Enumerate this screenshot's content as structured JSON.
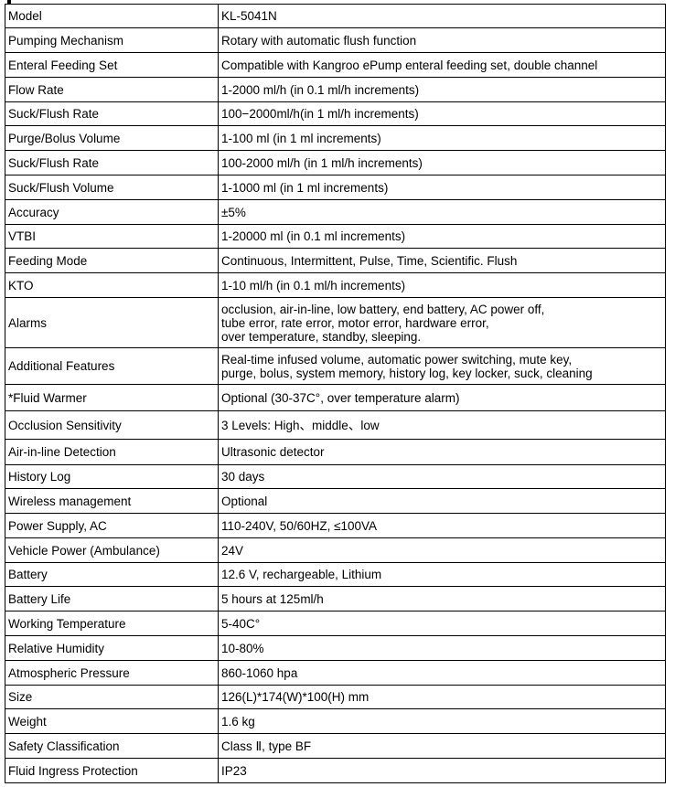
{
  "rows": [
    {
      "label": "Model",
      "value": "KL-5041N"
    },
    {
      "label": "Pumping Mechanism",
      "value": "Rotary with automatic flush function"
    },
    {
      "label": "Enteral Feeding Set",
      "value": "Compatible with Kangroo ePump enteral feeding set, double channel"
    },
    {
      "label": "Flow Rate",
      "value": "1-2000 ml/h (in 0.1 ml/h increments)"
    },
    {
      "label": "Suck/Flush Rate",
      "value": "100−2000ml/h(in 1 ml/h increments)"
    },
    {
      "label": "Purge/Bolus Volume",
      "value": "1-100 ml (in 1 ml increments)"
    },
    {
      "label": "Suck/Flush Rate",
      "value": "100-2000 ml/h (in 1 ml/h increments)"
    },
    {
      "label": "Suck/Flush Volume",
      "value": "1-1000 ml (in 1 ml increments)"
    },
    {
      "label": "Accuracy",
      "value": "±5%"
    },
    {
      "label": "VTBI",
      "value": "1-20000 ml (in 0.1 ml increments)"
    },
    {
      "label": "Feeding Mode",
      "value": "Continuous, Intermittent, Pulse, Time, Scientific. Flush"
    },
    {
      "label": "KTO",
      "value": "1-10 ml/h (in 0.1 ml/h increments)"
    },
    {
      "label": "Alarms",
      "value": "occlusion,  air-in-line, low battery, end battery, AC power off,\ntube error, rate error, motor error, hardware error,\nover temperature, standby, sleeping."
    },
    {
      "label": "Additional Features",
      "value": "Real-time infused volume, automatic power switching, mute key,\npurge, bolus, system memory, history log, key locker, suck, cleaning"
    },
    {
      "label": "*Fluid Warmer",
      "value": "Optional (30-37C°, over temperature alarm)"
    },
    {
      "label": "Occlusion Sensitivity",
      "value": "3 Levels: High、middle、low"
    },
    {
      "label": "Air-in-line Detection",
      "value": "Ultrasonic detector"
    },
    {
      "label": "History Log",
      "value": "30 days"
    },
    {
      "label": "Wireless management",
      "value": "Optional"
    },
    {
      "label": "Power Supply, AC",
      "value": "110-240V, 50/60HZ, ≤100VA"
    },
    {
      "label": "Vehicle Power (Ambulance)",
      "value": "24V"
    },
    {
      "label": "Battery",
      "value": "12.6 V, rechargeable, Lithium"
    },
    {
      "label": "Battery Life",
      "value": "5 hours at 125ml/h"
    },
    {
      "label": "Working Temperature",
      "value": "5-40C°"
    },
    {
      "label": "Relative Humidity",
      "value": "10-80%"
    },
    {
      "label": "Atmospheric Pressure",
      "value": "860-1060 hpa"
    },
    {
      "label": "Size",
      "value": "126(L)*174(W)*100(H) mm"
    },
    {
      "label": "Weight",
      "value": "1.6 kg"
    },
    {
      "label": "Safety Classification",
      "value": "Class Ⅱ, type BF"
    },
    {
      "label": "Fluid Ingress Protection",
      "value": "IP23"
    }
  ]
}
